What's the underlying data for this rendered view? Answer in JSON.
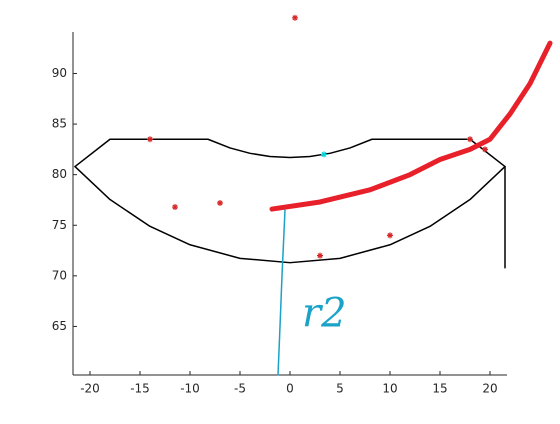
{
  "chart_data": {
    "type": "line",
    "xlim": [
      -21.7,
      21.7
    ],
    "ylim": [
      60.2,
      94.1
    ],
    "xticks": [
      -20,
      -15,
      -10,
      -5,
      0,
      5,
      10,
      15,
      20
    ],
    "yticks": [
      65,
      70,
      75,
      80,
      85,
      90
    ],
    "annotations": [
      {
        "text": "r2",
        "x": 1.2,
        "y": 66,
        "color": "#1aa3c8"
      }
    ],
    "series": [
      {
        "type": "line",
        "color": "#000000",
        "linewidth": 1.5,
        "x": [
          21.5,
          21.5,
          18,
          8.2,
          6,
          4,
          2,
          0,
          -2,
          -4,
          -6,
          -8.2,
          -18,
          -21.5
        ],
        "values": [
          70.8,
          80.8,
          83.5,
          83.5,
          82.64,
          82.11,
          81.8,
          81.7,
          81.8,
          82.11,
          82.64,
          83.5,
          83.5,
          80.8
        ]
      },
      {
        "type": "line",
        "color": "#000000",
        "linewidth": 1.5,
        "x": [
          -21.5,
          -18,
          -14,
          -10,
          -5,
          0,
          5,
          10,
          14,
          18,
          21.5
        ],
        "values": [
          80.8,
          77.54,
          74.89,
          73.07,
          71.73,
          71.3,
          71.73,
          73.07,
          74.89,
          77.54,
          80.8
        ]
      },
      {
        "type": "line",
        "color": "#e8202a",
        "linewidth": 5,
        "x": [
          -1.8,
          3,
          8,
          12,
          15,
          18,
          20,
          22,
          24,
          26
        ],
        "values": [
          76.6,
          77.3,
          78.5,
          80,
          81.5,
          82.5,
          83.5,
          86,
          89,
          93
        ]
      },
      {
        "type": "line",
        "color": "#1aa3c8",
        "linewidth": 1.5,
        "x": [
          -0.5,
          -0.8,
          -1.0,
          -1.2
        ],
        "values": [
          76.5,
          70,
          65,
          60.2
        ]
      },
      {
        "type": "scatter",
        "color": "#d62728",
        "x": [
          -14,
          18,
          19.5,
          0.5,
          -7,
          -11.5,
          10,
          3
        ],
        "values": [
          83.5,
          83.5,
          82.5,
          95.5,
          77.2,
          76.8,
          74,
          72
        ]
      },
      {
        "type": "scatter",
        "color": "#00d5e0",
        "x": [
          3.4
        ],
        "values": [
          82
        ]
      }
    ]
  }
}
